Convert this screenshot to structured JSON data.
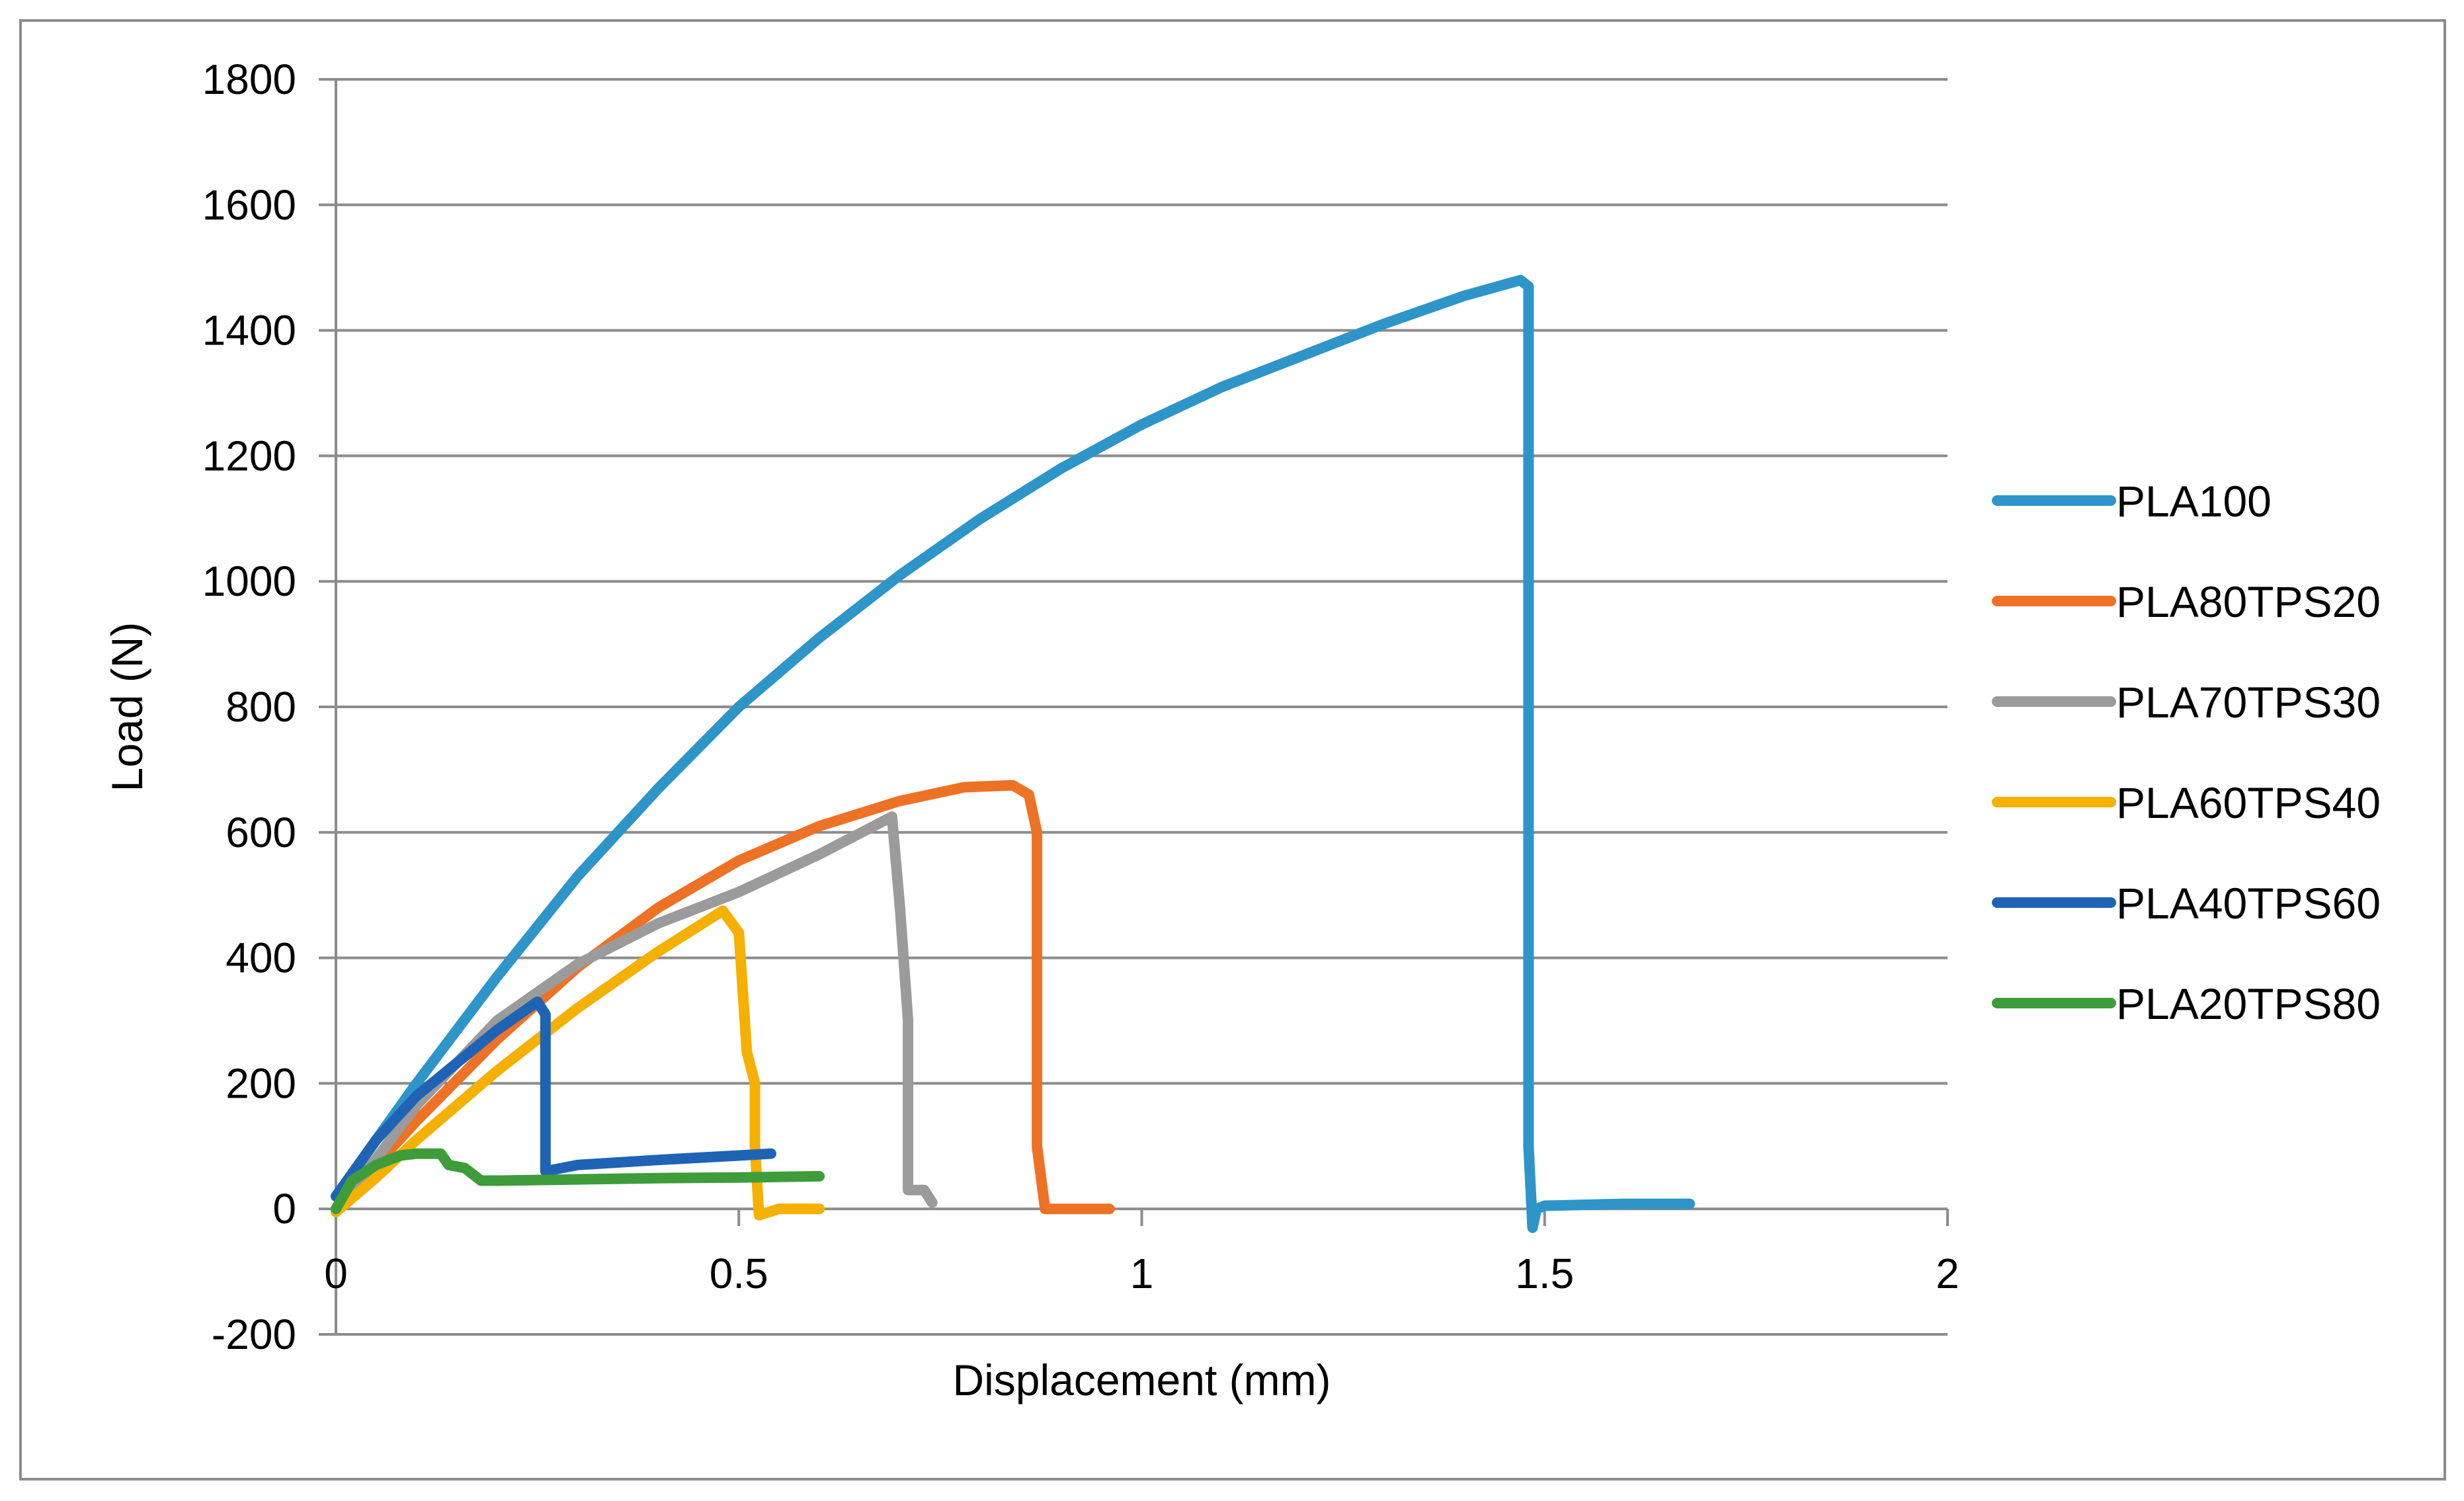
{
  "chart_data": {
    "type": "line",
    "title": "",
    "xlabel": "Displacement (mm)",
    "ylabel": "Load (N)",
    "xlim": [
      0,
      2
    ],
    "ylim": [
      -200,
      1800
    ],
    "xticks": [
      0,
      0.5,
      1,
      1.5,
      2
    ],
    "yticks": [
      -200,
      0,
      200,
      400,
      600,
      800,
      1000,
      1200,
      1400,
      1600,
      1800
    ],
    "xtick_labels": [
      "0",
      "0.5",
      "1",
      "1.5",
      "2"
    ],
    "ytick_labels": [
      "-200",
      "0",
      "200",
      "400",
      "600",
      "800",
      "1000",
      "1200",
      "1400",
      "1600",
      "1800"
    ],
    "grid": "horizontal",
    "legend_position": "right",
    "series": [
      {
        "name": "PLA100",
        "color": "#2E95C9",
        "x": [
          0,
          0.05,
          0.1,
          0.2,
          0.3,
          0.4,
          0.5,
          0.6,
          0.7,
          0.8,
          0.9,
          1.0,
          1.1,
          1.2,
          1.3,
          1.4,
          1.47,
          1.48,
          1.48,
          1.485,
          1.49,
          1.5,
          1.6,
          1.68
        ],
        "y": [
          20,
          110,
          200,
          370,
          530,
          670,
          800,
          910,
          1010,
          1100,
          1180,
          1250,
          1310,
          1360,
          1410,
          1455,
          1480,
          1470,
          100,
          -30,
          0,
          5,
          8,
          8
        ]
      },
      {
        "name": "PLA80TPS20",
        "color": "#ED7225",
        "x": [
          0,
          0.05,
          0.1,
          0.2,
          0.3,
          0.4,
          0.5,
          0.6,
          0.7,
          0.78,
          0.84,
          0.86,
          0.87,
          0.87,
          0.88,
          0.9,
          0.96
        ],
        "y": [
          0,
          70,
          140,
          270,
          385,
          480,
          555,
          610,
          650,
          672,
          675,
          660,
          600,
          100,
          0,
          0,
          0
        ]
      },
      {
        "name": "PLA70TPS30",
        "color": "#9B9B9B",
        "x": [
          0,
          0.05,
          0.1,
          0.2,
          0.3,
          0.4,
          0.5,
          0.6,
          0.69,
          0.7,
          0.71,
          0.71,
          0.72,
          0.73,
          0.74
        ],
        "y": [
          0,
          80,
          165,
          300,
          390,
          455,
          505,
          565,
          625,
          480,
          300,
          30,
          30,
          30,
          10
        ]
      },
      {
        "name": "PLA60TPS40",
        "color": "#F5B000",
        "x": [
          0,
          0.05,
          0.1,
          0.2,
          0.3,
          0.4,
          0.48,
          0.5,
          0.51,
          0.52,
          0.52,
          0.525,
          0.55,
          0.6
        ],
        "y": [
          -5,
          50,
          110,
          220,
          320,
          410,
          475,
          440,
          250,
          200,
          100,
          -10,
          0,
          0
        ]
      },
      {
        "name": "PLA40TPS60",
        "color": "#1F64B4",
        "x": [
          0,
          0.05,
          0.1,
          0.2,
          0.25,
          0.26,
          0.26,
          0.3,
          0.4,
          0.5,
          0.54
        ],
        "y": [
          20,
          110,
          180,
          285,
          330,
          310,
          60,
          70,
          78,
          85,
          88
        ]
      },
      {
        "name": "PLA20TPS80",
        "color": "#3E9D3A",
        "x": [
          0,
          0.02,
          0.05,
          0.08,
          0.1,
          0.13,
          0.14,
          0.16,
          0.18,
          0.2,
          0.3,
          0.4,
          0.5,
          0.6
        ],
        "y": [
          0,
          45,
          70,
          85,
          88,
          88,
          70,
          65,
          45,
          45,
          47,
          49,
          50,
          52
        ]
      }
    ]
  }
}
